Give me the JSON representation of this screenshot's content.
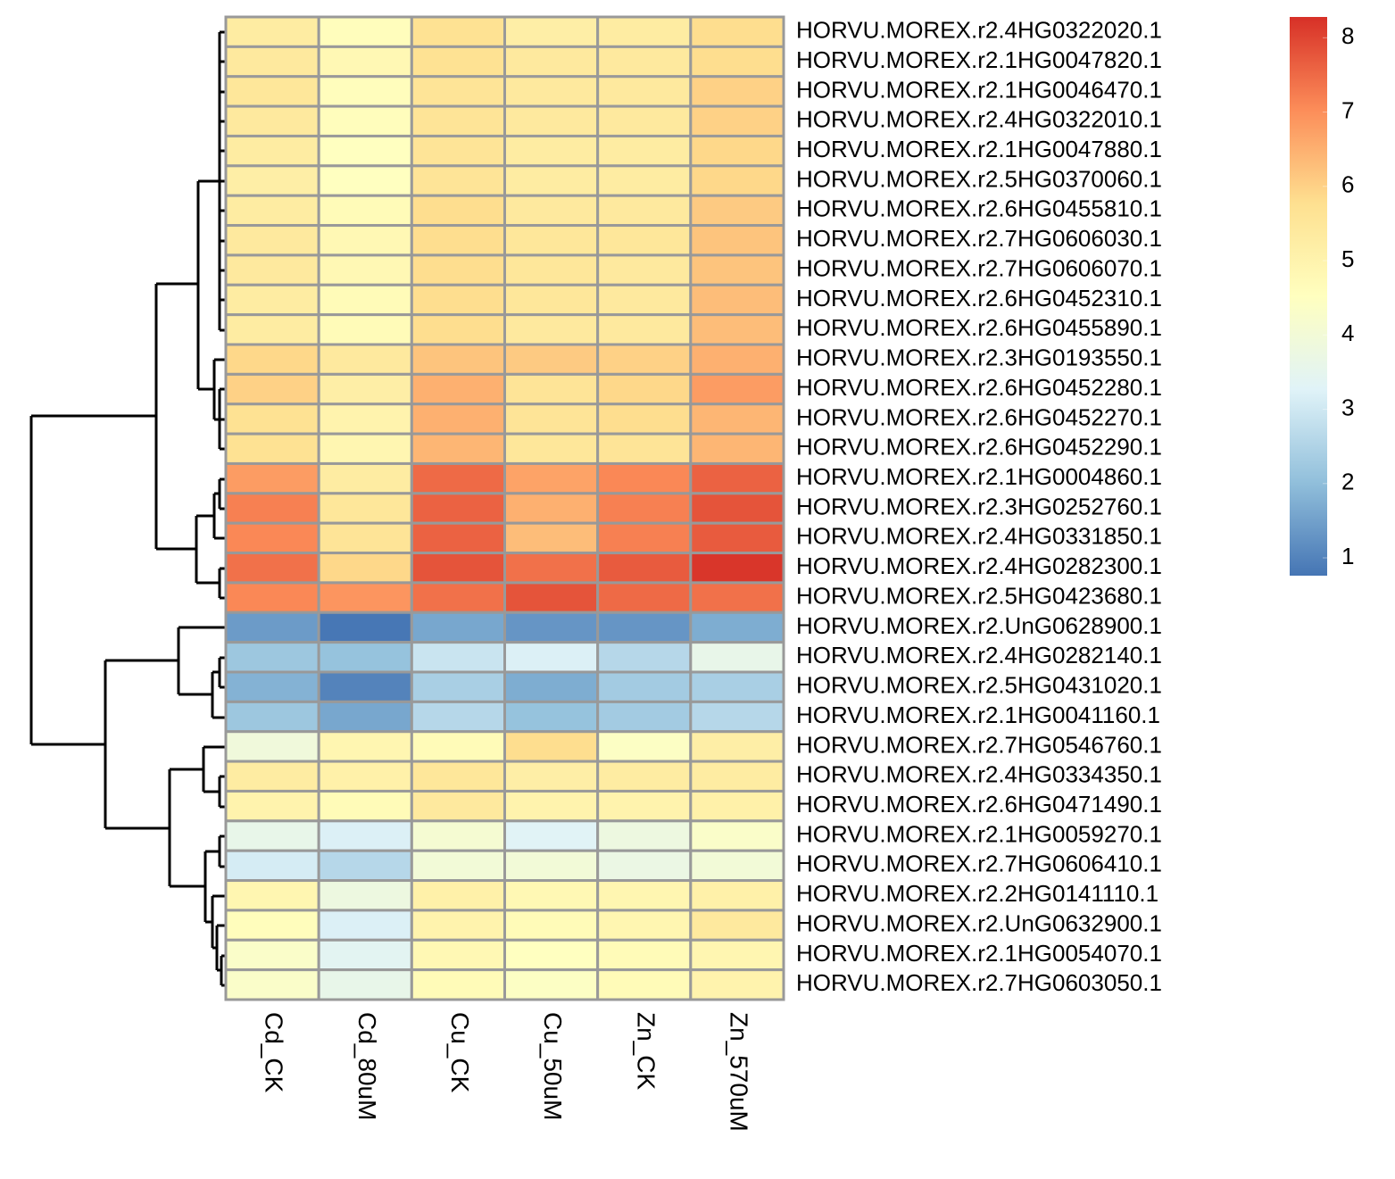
{
  "chart_data": {
    "type": "heatmap",
    "rows": [
      "HORVU.MOREX.r2.4HG0322020.1",
      "HORVU.MOREX.r2.1HG0047820.1",
      "HORVU.MOREX.r2.1HG0046470.1",
      "HORVU.MOREX.r2.4HG0322010.1",
      "HORVU.MOREX.r2.1HG0047880.1",
      "HORVU.MOREX.r2.5HG0370060.1",
      "HORVU.MOREX.r2.6HG0455810.1",
      "HORVU.MOREX.r2.7HG0606030.1",
      "HORVU.MOREX.r2.7HG0606070.1",
      "HORVU.MOREX.r2.6HG0452310.1",
      "HORVU.MOREX.r2.6HG0455890.1",
      "HORVU.MOREX.r2.3HG0193550.1",
      "HORVU.MOREX.r2.6HG0452280.1",
      "HORVU.MOREX.r2.6HG0452270.1",
      "HORVU.MOREX.r2.6HG0452290.1",
      "HORVU.MOREX.r2.1HG0004860.1",
      "HORVU.MOREX.r2.3HG0252760.1",
      "HORVU.MOREX.r2.4HG0331850.1",
      "HORVU.MOREX.r2.4HG0282300.1",
      "HORVU.MOREX.r2.5HG0423680.1",
      "HORVU.MOREX.r2.UnG0628900.1",
      "HORVU.MOREX.r2.4HG0282140.1",
      "HORVU.MOREX.r2.5HG0431020.1",
      "HORVU.MOREX.r2.1HG0041160.1",
      "HORVU.MOREX.r2.7HG0546760.1",
      "HORVU.MOREX.r2.4HG0334350.1",
      "HORVU.MOREX.r2.6HG0471490.1",
      "HORVU.MOREX.r2.1HG0059270.1",
      "HORVU.MOREX.r2.7HG0606410.1",
      "HORVU.MOREX.r2.2HG0141110.1",
      "HORVU.MOREX.r2.UnG0632900.1",
      "HORVU.MOREX.r2.1HG0054070.1",
      "HORVU.MOREX.r2.7HG0603050.1"
    ],
    "columns": [
      "Cd_CK",
      "Cd_80uM",
      "Cu_CK",
      "Cu_50uM",
      "Zn_CK",
      "Zn_570uM"
    ],
    "z": [
      [
        5.3,
        4.6,
        5.7,
        5.2,
        5.3,
        5.8
      ],
      [
        5.4,
        4.8,
        5.7,
        5.4,
        5.4,
        5.8
      ],
      [
        5.5,
        4.6,
        5.6,
        5.4,
        5.4,
        6.0
      ],
      [
        5.4,
        4.6,
        5.6,
        5.4,
        5.4,
        6.0
      ],
      [
        5.3,
        4.5,
        5.6,
        5.3,
        5.3,
        5.9
      ],
      [
        5.2,
        4.5,
        5.6,
        5.3,
        5.3,
        5.9
      ],
      [
        5.3,
        4.7,
        5.8,
        5.4,
        5.4,
        6.1
      ],
      [
        5.4,
        4.8,
        5.8,
        5.5,
        5.5,
        6.2
      ],
      [
        5.4,
        4.8,
        5.8,
        5.5,
        5.4,
        6.2
      ],
      [
        5.3,
        4.7,
        5.8,
        5.5,
        5.4,
        6.3
      ],
      [
        5.3,
        4.7,
        5.8,
        5.4,
        5.4,
        6.3
      ],
      [
        5.9,
        5.4,
        6.2,
        6.1,
        6.0,
        6.5
      ],
      [
        6.0,
        5.2,
        6.5,
        5.6,
        5.9,
        6.8
      ],
      [
        5.7,
        5.0,
        6.5,
        5.6,
        5.8,
        6.4
      ],
      [
        5.7,
        4.9,
        6.4,
        5.5,
        5.6,
        6.4
      ],
      [
        6.8,
        5.3,
        7.5,
        6.7,
        7.1,
        7.6
      ],
      [
        7.2,
        5.5,
        7.6,
        6.5,
        7.2,
        7.8
      ],
      [
        7.1,
        5.6,
        7.6,
        6.3,
        7.2,
        7.7
      ],
      [
        7.4,
        5.9,
        7.8,
        7.4,
        7.7,
        8.2
      ],
      [
        7.1,
        6.9,
        7.4,
        7.8,
        7.5,
        7.4
      ],
      [
        1.4,
        0.8,
        1.6,
        1.3,
        1.3,
        1.7
      ],
      [
        2.2,
        2.1,
        2.9,
        3.2,
        2.6,
        3.6
      ],
      [
        1.8,
        1.0,
        2.4,
        1.7,
        2.3,
        2.4
      ],
      [
        2.2,
        1.6,
        2.6,
        2.1,
        2.3,
        2.6
      ],
      [
        3.9,
        4.9,
        4.7,
        5.8,
        4.4,
        5.2
      ],
      [
        5.3,
        5.1,
        5.5,
        5.2,
        5.3,
        5.3
      ],
      [
        5.0,
        4.7,
        5.4,
        5.0,
        5.0,
        5.1
      ],
      [
        3.6,
        3.2,
        4.1,
        3.3,
        3.8,
        4.3
      ],
      [
        3.1,
        2.6,
        4.0,
        4.0,
        3.7,
        4.0
      ],
      [
        4.9,
        3.8,
        5.1,
        4.8,
        4.9,
        5.1
      ],
      [
        4.6,
        3.2,
        5.0,
        4.7,
        4.9,
        5.4
      ],
      [
        4.3,
        3.4,
        4.8,
        4.5,
        4.7,
        4.9
      ],
      [
        4.3,
        3.6,
        4.7,
        4.4,
        4.7,
        5.0
      ]
    ],
    "zlim": [
      0.76,
      8.28
    ],
    "zticks": [
      1,
      2,
      3,
      4,
      5,
      6,
      7,
      8
    ],
    "colors": [
      "#4575b4",
      "#91bfdb",
      "#e0f3f8",
      "#ffffbf",
      "#fee090",
      "#fc8d59",
      "#d73027"
    ],
    "border_color": "#999999"
  }
}
